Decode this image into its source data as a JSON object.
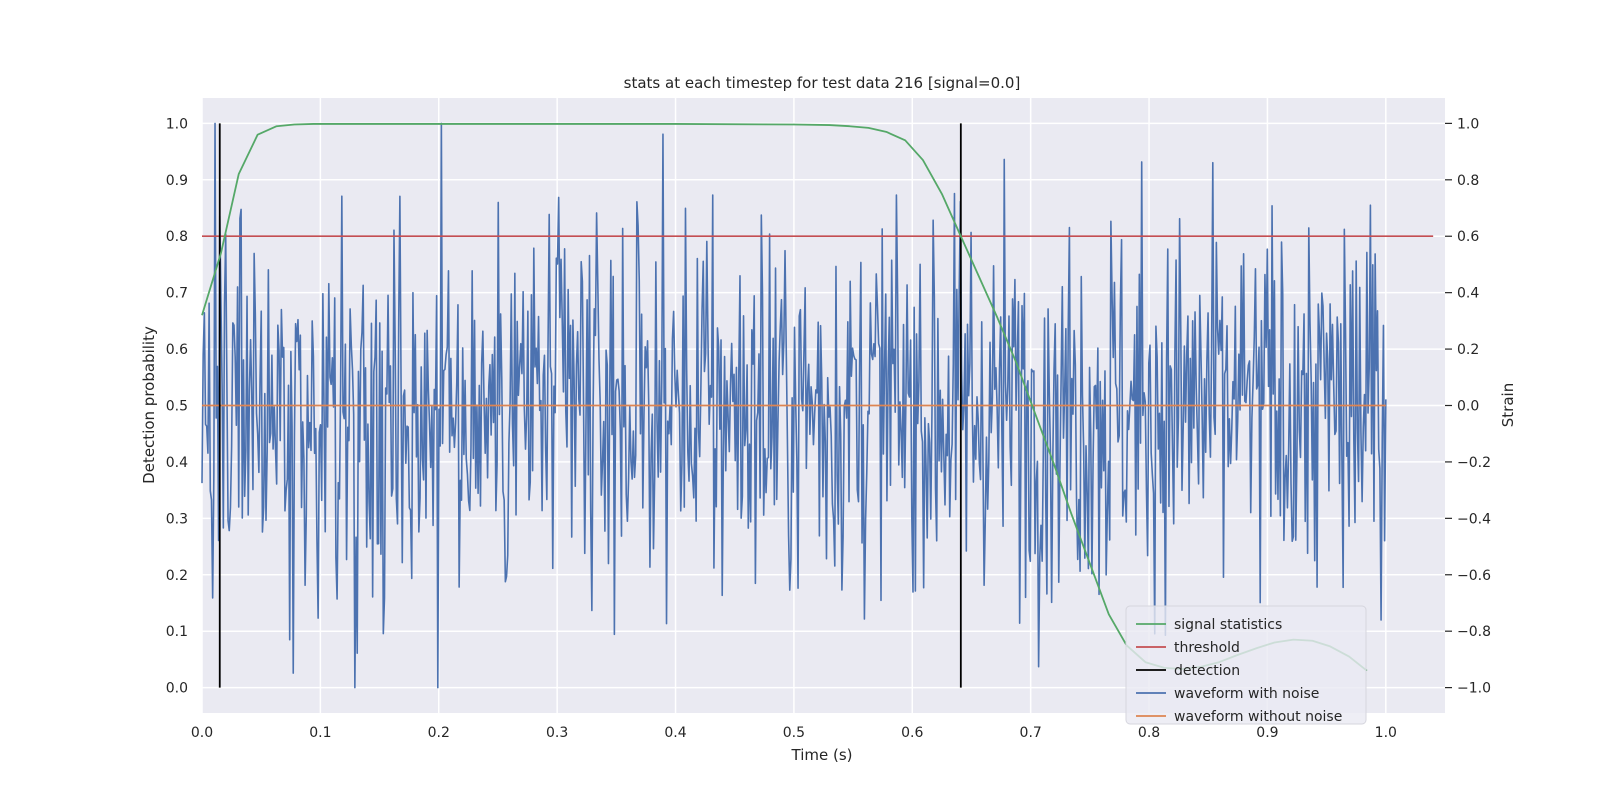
{
  "chart_data": {
    "type": "line",
    "title": "stats at each timestep for test data 216 [signal=0.0]",
    "xlabel": "Time (s)",
    "ylabel_left": "Detection probability",
    "ylabel_right": "Strain",
    "xlim": [
      0.0,
      1.05
    ],
    "ylim_left": [
      -0.045,
      1.045
    ],
    "ylim_right": [
      -1.09,
      1.09
    ],
    "x_ticks": [
      "0.0",
      "0.1",
      "0.2",
      "0.3",
      "0.4",
      "0.5",
      "0.6",
      "0.7",
      "0.8",
      "0.9",
      "1.0"
    ],
    "y_left_ticks": [
      "0.0",
      "0.1",
      "0.2",
      "0.3",
      "0.4",
      "0.5",
      "0.6",
      "0.7",
      "0.8",
      "0.9",
      "1.0"
    ],
    "y_right_ticks": [
      "−1.0",
      "−0.8",
      "−0.6",
      "−0.4",
      "−0.2",
      "0.0",
      "0.2",
      "0.4",
      "0.6",
      "0.8",
      "1.0"
    ],
    "grid": true,
    "legend_position": "bottom-right",
    "colors": {
      "signal_statistics": "#55a868",
      "threshold": "#c44e52",
      "detection": "#000000",
      "waveform_with_noise": "#4c72b0",
      "waveform_without_noise": "#dd8452",
      "plot_background": "#eaeaf2",
      "grid": "#ffffff"
    },
    "series": [
      {
        "name": "signal statistics",
        "axis": "left",
        "x": [
          0.0,
          0.016,
          0.031,
          0.047,
          0.063,
          0.078,
          0.094,
          0.109,
          0.125,
          0.2,
          0.3,
          0.4,
          0.5,
          0.53,
          0.547,
          0.563,
          0.578,
          0.594,
          0.609,
          0.625,
          0.641,
          0.656,
          0.672,
          0.688,
          0.703,
          0.719,
          0.734,
          0.75,
          0.766,
          0.781,
          0.797,
          0.813,
          0.828,
          0.844,
          0.859,
          0.875,
          0.891,
          0.906,
          0.922,
          0.938,
          0.953,
          0.969,
          0.984
        ],
        "y": [
          0.66,
          0.77,
          0.91,
          0.98,
          0.995,
          0.998,
          0.999,
          0.999,
          0.999,
          0.999,
          0.999,
          0.999,
          0.998,
          0.997,
          0.995,
          0.992,
          0.985,
          0.97,
          0.935,
          0.875,
          0.8,
          0.73,
          0.655,
          0.575,
          0.49,
          0.4,
          0.31,
          0.22,
          0.13,
          0.075,
          0.045,
          0.035,
          0.033,
          0.037,
          0.045,
          0.058,
          0.07,
          0.08,
          0.085,
          0.083,
          0.073,
          0.055,
          0.03
        ]
      },
      {
        "name": "threshold",
        "axis": "left",
        "x": [
          0.0,
          1.04
        ],
        "y": [
          0.8,
          0.8
        ]
      },
      {
        "name": "detection",
        "axis": "left",
        "x": [
          0.015,
          0.641
        ],
        "y_range": [
          0.0,
          1.0
        ]
      },
      {
        "name": "waveform with noise",
        "axis": "right",
        "n_samples": 1000,
        "x_range": [
          0.0,
          1.0
        ],
        "y_range_observed": [
          -1.0,
          1.0
        ]
      },
      {
        "name": "waveform without noise",
        "axis": "right",
        "x": [
          0.0,
          1.0
        ],
        "y": [
          0.0,
          0.0
        ]
      }
    ],
    "legend": [
      "signal statistics",
      "threshold",
      "detection",
      "waveform with noise",
      "waveform without noise"
    ]
  }
}
